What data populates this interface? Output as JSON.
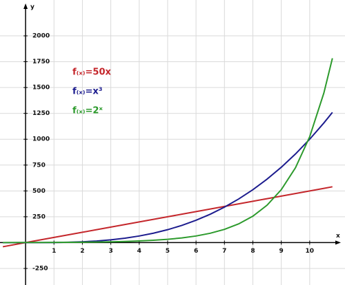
{
  "chart_data": {
    "type": "line",
    "xlabel": "x",
    "ylabel": "y",
    "x": [
      -0.8,
      0,
      0.5,
      1,
      1.5,
      2,
      2.5,
      3,
      3.5,
      4,
      4.5,
      5,
      5.5,
      6,
      6.5,
      7,
      7.5,
      8,
      8.5,
      9,
      9.5,
      10,
      10.5,
      10.8
    ],
    "series": [
      {
        "name": "f₍ₓ₎=50x",
        "color": "#c4262b",
        "values": [
          -40,
          0,
          25,
          50,
          75,
          100,
          125,
          150,
          175,
          200,
          225,
          250,
          275,
          300,
          325,
          350,
          375,
          400,
          425,
          450,
          475,
          500,
          525,
          540
        ]
      },
      {
        "name": "f₍ₓ₎=x³",
        "color": "#1c1c8e",
        "values": [
          -0.512,
          0,
          0.125,
          1,
          3.375,
          8,
          15.625,
          27,
          42.875,
          64,
          91.125,
          125,
          166.375,
          216,
          274.625,
          343,
          421.875,
          512,
          614.125,
          729,
          857.375,
          1000,
          1157.625,
          1259.712
        ]
      },
      {
        "name": "f₍ₓ₎=2ˣ",
        "color": "#2c9a2c",
        "values": [
          0.574,
          1,
          1.414,
          2,
          2.828,
          4,
          5.657,
          8,
          11.314,
          16,
          22.627,
          32,
          45.255,
          64,
          90.51,
          128,
          181.019,
          256,
          362.039,
          512,
          724.077,
          1024,
          1448.155,
          1782.89
        ]
      }
    ],
    "xlim": [
      -0.9,
      11
    ],
    "ylim": [
      -410,
      2280
    ],
    "xticks": [
      1,
      2,
      3,
      4,
      5,
      6,
      7,
      8,
      9,
      10
    ],
    "yticks": [
      -250,
      250,
      500,
      750,
      1000,
      1250,
      1500,
      1750,
      2000
    ],
    "grid": true
  }
}
